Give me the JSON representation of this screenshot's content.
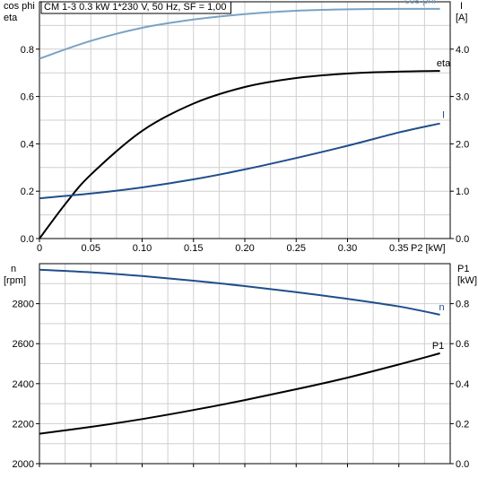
{
  "chart_title": "CM 1-3   0.3 kW   1*230 V, 50 Hz, SF = 1,00",
  "colors": {
    "cos_phi": "#7aa2c4",
    "eta": "#000000",
    "I": "#1f4e8c",
    "n": "#1f4e8c",
    "P1": "#000000",
    "grid": "#cfcfcf"
  },
  "chart_data": [
    {
      "type": "line",
      "x_axis": {
        "label": "P2 [kW]",
        "range": [
          0,
          0.4
        ],
        "ticks": [
          0,
          0.05,
          0.1,
          0.15,
          0.2,
          0.25,
          0.3,
          0.35
        ],
        "tick_labels": [
          "0",
          "0.05",
          "0.10",
          "0.15",
          "0.20",
          "0.25",
          "0.30",
          "0.35"
        ]
      },
      "y_left": {
        "label_lines": [
          "cos phi",
          "eta"
        ],
        "range": [
          0,
          1.0
        ],
        "ticks": [
          0,
          0.2,
          0.4,
          0.6,
          0.8
        ],
        "tick_labels": [
          "0.0",
          "0.2",
          "0.4",
          "0.6",
          "0.8"
        ]
      },
      "y_right": {
        "label_lines": [
          "I",
          "[A]"
        ],
        "range": [
          0,
          5.0
        ],
        "ticks": [
          0,
          1,
          2,
          3,
          4
        ],
        "tick_labels": [
          "0.0",
          "1.0",
          "2.0",
          "3.0",
          "4.0"
        ]
      },
      "grid": true,
      "series": [
        {
          "name": "cos phi",
          "axis": "left",
          "x": [
            0,
            0.05,
            0.1,
            0.15,
            0.2,
            0.25,
            0.3,
            0.35,
            0.39
          ],
          "y": [
            0.76,
            0.835,
            0.89,
            0.925,
            0.948,
            0.962,
            0.968,
            0.97,
            0.97
          ]
        },
        {
          "name": "eta",
          "axis": "left",
          "x": [
            0,
            0.025,
            0.05,
            0.1,
            0.15,
            0.2,
            0.25,
            0.3,
            0.35,
            0.39
          ],
          "y": [
            0,
            0.145,
            0.27,
            0.455,
            0.57,
            0.64,
            0.678,
            0.697,
            0.705,
            0.708
          ]
        },
        {
          "name": "I",
          "axis": "right",
          "x": [
            0,
            0.05,
            0.1,
            0.15,
            0.2,
            0.25,
            0.3,
            0.35,
            0.39
          ],
          "y": [
            0.85,
            0.95,
            1.08,
            1.25,
            1.46,
            1.7,
            1.96,
            2.24,
            2.43
          ]
        }
      ]
    },
    {
      "type": "line",
      "x_axis": {
        "range": [
          0,
          0.4
        ],
        "ticks": [
          0,
          0.05,
          0.1,
          0.15,
          0.2,
          0.25,
          0.3,
          0.35
        ]
      },
      "y_left": {
        "label_lines": [
          "n",
          "[rpm]"
        ],
        "range": [
          2000,
          3000
        ],
        "ticks": [
          2000,
          2200,
          2400,
          2600,
          2800
        ],
        "tick_labels": [
          "2000",
          "2200",
          "2400",
          "2600",
          "2800"
        ]
      },
      "y_right": {
        "label_lines": [
          "P1",
          "[kW]"
        ],
        "range": [
          0,
          1.0
        ],
        "ticks": [
          0,
          0.2,
          0.4,
          0.6,
          0.8
        ],
        "tick_labels": [
          "0.0",
          "0.2",
          "0.4",
          "0.6",
          "0.8"
        ]
      },
      "grid": true,
      "series": [
        {
          "name": "n",
          "axis": "left",
          "x": [
            0,
            0.05,
            0.1,
            0.15,
            0.2,
            0.25,
            0.3,
            0.35,
            0.39
          ],
          "y": [
            2970,
            2957,
            2938,
            2915,
            2888,
            2858,
            2824,
            2786,
            2745
          ]
        },
        {
          "name": "P1",
          "axis": "right",
          "x": [
            0,
            0.05,
            0.1,
            0.15,
            0.2,
            0.25,
            0.3,
            0.35,
            0.39
          ],
          "y": [
            0.15,
            0.184,
            0.223,
            0.268,
            0.318,
            0.372,
            0.43,
            0.496,
            0.552
          ]
        }
      ]
    }
  ]
}
